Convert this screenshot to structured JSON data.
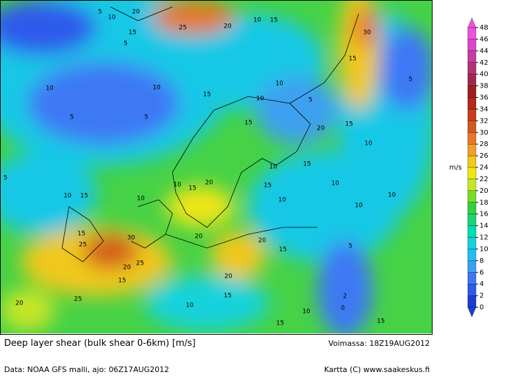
{
  "header": {
    "title": "Deep layer shear (bulk shear 0-6km) [m/s]",
    "valid": "Voimassa: 18Z19AUG2012",
    "source": "Data: NOAA GFS malli, ajo: 06Z17AUG2012",
    "credit": "Kartta (C) www.saakeskus.fi"
  },
  "colorbar": {
    "unit": "m/s",
    "ticks": [
      0,
      2,
      4,
      6,
      8,
      10,
      12,
      14,
      16,
      18,
      20,
      22,
      24,
      26,
      28,
      30,
      32,
      34,
      36,
      38,
      40,
      42,
      44,
      46,
      48
    ],
    "colors": [
      "#1e3cd2",
      "#2d5aeb",
      "#3c78f5",
      "#3ca0f0",
      "#1ebef0",
      "#14d2dc",
      "#00dcb4",
      "#1ed278",
      "#32d23c",
      "#78dc28",
      "#c8e628",
      "#f0e614",
      "#f0c81e",
      "#f0a028",
      "#e67828",
      "#d25a1e",
      "#c83c1e",
      "#b4281e",
      "#a01e1e",
      "#a02850",
      "#b43278",
      "#c83ca0",
      "#dc46c8",
      "#f050dc"
    ]
  },
  "map_labels": [
    "5",
    "20",
    "10",
    "15",
    "5",
    "25",
    "20",
    "10",
    "15",
    "30",
    "15",
    "5",
    "15",
    "10",
    "10",
    "10",
    "10",
    "5",
    "5",
    "5",
    "15",
    "20",
    "15",
    "10",
    "15",
    "10",
    "20",
    "10",
    "15",
    "10",
    "15",
    "5",
    "10",
    "15",
    "10",
    "10",
    "10",
    "10",
    "15",
    "25",
    "30",
    "20",
    "20",
    "15",
    "5",
    "20",
    "25",
    "15",
    "20",
    "25",
    "15",
    "20",
    "10",
    "10",
    "2",
    "0",
    "15",
    "15"
  ]
}
